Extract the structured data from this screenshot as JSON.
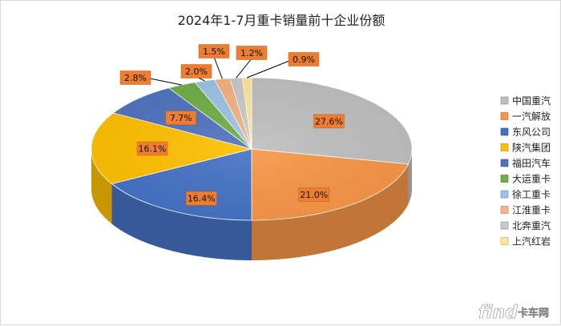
{
  "chart_data": {
    "type": "pie",
    "title": "2024年1-7月重卡销量前十企业份额",
    "categories": [
      "中国重汽",
      "一汽解放",
      "东风公司",
      "陕汽集团",
      "福田汽车",
      "大运重卡",
      "徐工重卡",
      "江淮重卡",
      "北奔重汽",
      "上汽红岩"
    ],
    "values": [
      27.6,
      21.0,
      16.4,
      16.1,
      7.7,
      2.8,
      2.0,
      1.5,
      1.2,
      0.9
    ],
    "data_labels": [
      "27.6%",
      "21.0%",
      "16.4%",
      "16.1%",
      "7.7%",
      "2.8%",
      "2.0%",
      "1.5%",
      "1.2%",
      "0.9%"
    ],
    "colors": [
      "#bfbfbf",
      "#f79646",
      "#4472c4",
      "#ffc000",
      "#4f73be",
      "#70ad47",
      "#9dc3e6",
      "#f4b183",
      "#c9c9c9",
      "#ffe699"
    ],
    "style": "3d-pie",
    "legend_position": "right"
  },
  "watermark": {
    "logo_text": "find",
    "site_text": "卡车网"
  }
}
